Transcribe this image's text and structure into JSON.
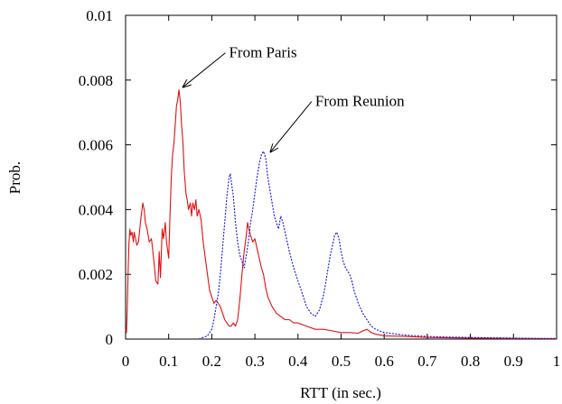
{
  "chart_data": {
    "type": "line",
    "title": "",
    "xlabel": "RTT (in sec.)",
    "ylabel": "Prob.",
    "xlim": [
      0,
      1
    ],
    "ylim": [
      0,
      0.01
    ],
    "x_ticks": [
      "0",
      "0.1",
      "0.2",
      "0.3",
      "0.4",
      "0.5",
      "0.6",
      "0.7",
      "0.8",
      "0.9",
      "1"
    ],
    "y_ticks": [
      "0",
      "0.002",
      "0.004",
      "0.006",
      "0.008",
      "0.01"
    ],
    "grid": false,
    "legend": "none",
    "series": [
      {
        "color": "#e01010",
        "style": "solid",
        "points": [
          [
            0.0,
            0.0003
          ],
          [
            0.002,
            0.0002
          ],
          [
            0.004,
            0.001
          ],
          [
            0.006,
            0.0022
          ],
          [
            0.008,
            0.003
          ],
          [
            0.01,
            0.0034
          ],
          [
            0.012,
            0.0032
          ],
          [
            0.015,
            0.0033
          ],
          [
            0.018,
            0.003
          ],
          [
            0.02,
            0.0033
          ],
          [
            0.023,
            0.0031
          ],
          [
            0.026,
            0.0029
          ],
          [
            0.03,
            0.003
          ],
          [
            0.033,
            0.0034
          ],
          [
            0.036,
            0.0038
          ],
          [
            0.04,
            0.0042
          ],
          [
            0.043,
            0.004
          ],
          [
            0.046,
            0.0036
          ],
          [
            0.05,
            0.0034
          ],
          [
            0.055,
            0.003
          ],
          [
            0.06,
            0.0031
          ],
          [
            0.065,
            0.0025
          ],
          [
            0.07,
            0.0018
          ],
          [
            0.075,
            0.0017
          ],
          [
            0.078,
            0.0027
          ],
          [
            0.081,
            0.0019
          ],
          [
            0.085,
            0.0034
          ],
          [
            0.088,
            0.0031
          ],
          [
            0.092,
            0.0036
          ],
          [
            0.095,
            0.003
          ],
          [
            0.1,
            0.0025
          ],
          [
            0.103,
            0.0038
          ],
          [
            0.106,
            0.005
          ],
          [
            0.109,
            0.0057
          ],
          [
            0.112,
            0.006
          ],
          [
            0.115,
            0.0066
          ],
          [
            0.118,
            0.0072
          ],
          [
            0.121,
            0.0074
          ],
          [
            0.124,
            0.0077
          ],
          [
            0.127,
            0.0073
          ],
          [
            0.13,
            0.0066
          ],
          [
            0.133,
            0.0061
          ],
          [
            0.136,
            0.0052
          ],
          [
            0.14,
            0.0045
          ],
          [
            0.143,
            0.0043
          ],
          [
            0.146,
            0.004
          ],
          [
            0.15,
            0.0042
          ],
          [
            0.153,
            0.0038
          ],
          [
            0.156,
            0.0042
          ],
          [
            0.16,
            0.004
          ],
          [
            0.163,
            0.0043
          ],
          [
            0.166,
            0.0038
          ],
          [
            0.17,
            0.004
          ],
          [
            0.175,
            0.0037
          ],
          [
            0.18,
            0.003
          ],
          [
            0.185,
            0.0025
          ],
          [
            0.19,
            0.002
          ],
          [
            0.195,
            0.0015
          ],
          [
            0.2,
            0.0013
          ],
          [
            0.205,
            0.0011
          ],
          [
            0.21,
            0.0012
          ],
          [
            0.215,
            0.0011
          ],
          [
            0.22,
            0.001
          ],
          [
            0.225,
            0.0008
          ],
          [
            0.23,
            0.0006
          ],
          [
            0.235,
            0.0005
          ],
          [
            0.24,
            0.0004
          ],
          [
            0.245,
            0.0004
          ],
          [
            0.25,
            0.0005
          ],
          [
            0.255,
            0.0004
          ],
          [
            0.26,
            0.0006
          ],
          [
            0.265,
            0.0012
          ],
          [
            0.27,
            0.002
          ],
          [
            0.275,
            0.0027
          ],
          [
            0.28,
            0.0032
          ],
          [
            0.283,
            0.0036
          ],
          [
            0.286,
            0.0034
          ],
          [
            0.29,
            0.0032
          ],
          [
            0.295,
            0.003
          ],
          [
            0.3,
            0.0031
          ],
          [
            0.305,
            0.0028
          ],
          [
            0.31,
            0.0025
          ],
          [
            0.315,
            0.0022
          ],
          [
            0.32,
            0.002
          ],
          [
            0.325,
            0.0016
          ],
          [
            0.33,
            0.0013
          ],
          [
            0.34,
            0.001
          ],
          [
            0.35,
            0.0008
          ],
          [
            0.36,
            0.0007
          ],
          [
            0.37,
            0.0006
          ],
          [
            0.38,
            0.0006
          ],
          [
            0.39,
            0.0005
          ],
          [
            0.4,
            0.0005
          ],
          [
            0.42,
            0.0004
          ],
          [
            0.44,
            0.0003
          ],
          [
            0.46,
            0.0003
          ],
          [
            0.48,
            0.00025
          ],
          [
            0.5,
            0.0002
          ],
          [
            0.52,
            0.0002
          ],
          [
            0.54,
            0.00018
          ],
          [
            0.55,
            0.00025
          ],
          [
            0.56,
            0.0003
          ],
          [
            0.57,
            0.0002
          ],
          [
            0.58,
            0.00015
          ],
          [
            0.6,
            0.0001
          ],
          [
            0.65,
            8e-05
          ],
          [
            0.7,
            5e-05
          ],
          [
            0.8,
            3e-05
          ],
          [
            0.9,
            2e-05
          ],
          [
            1.0,
            1e-05
          ]
        ]
      },
      {
        "color": "#1010e0",
        "style": "dotted",
        "points": [
          [
            0.17,
            0.0
          ],
          [
            0.18,
            5e-05
          ],
          [
            0.19,
            0.0001
          ],
          [
            0.2,
            0.0003
          ],
          [
            0.205,
            0.0006
          ],
          [
            0.21,
            0.001
          ],
          [
            0.215,
            0.0014
          ],
          [
            0.22,
            0.002
          ],
          [
            0.225,
            0.0028
          ],
          [
            0.23,
            0.0036
          ],
          [
            0.235,
            0.0044
          ],
          [
            0.24,
            0.005
          ],
          [
            0.243,
            0.0051
          ],
          [
            0.246,
            0.0048
          ],
          [
            0.25,
            0.0044
          ],
          [
            0.255,
            0.0036
          ],
          [
            0.26,
            0.003
          ],
          [
            0.265,
            0.0026
          ],
          [
            0.27,
            0.0024
          ],
          [
            0.275,
            0.0022
          ],
          [
            0.28,
            0.0026
          ],
          [
            0.285,
            0.003
          ],
          [
            0.29,
            0.0036
          ],
          [
            0.295,
            0.004
          ],
          [
            0.3,
            0.0045
          ],
          [
            0.305,
            0.005
          ],
          [
            0.31,
            0.0054
          ],
          [
            0.315,
            0.0057
          ],
          [
            0.32,
            0.0058
          ],
          [
            0.325,
            0.0056
          ],
          [
            0.33,
            0.005
          ],
          [
            0.335,
            0.0046
          ],
          [
            0.34,
            0.0042
          ],
          [
            0.345,
            0.0038
          ],
          [
            0.35,
            0.0036
          ],
          [
            0.355,
            0.0034
          ],
          [
            0.36,
            0.0038
          ],
          [
            0.365,
            0.0036
          ],
          [
            0.37,
            0.0033
          ],
          [
            0.375,
            0.003
          ],
          [
            0.38,
            0.0027
          ],
          [
            0.39,
            0.0022
          ],
          [
            0.4,
            0.0018
          ],
          [
            0.41,
            0.0014
          ],
          [
            0.42,
            0.001
          ],
          [
            0.43,
            0.0008
          ],
          [
            0.44,
            0.0007
          ],
          [
            0.45,
            0.0009
          ],
          [
            0.46,
            0.0014
          ],
          [
            0.465,
            0.0018
          ],
          [
            0.47,
            0.0022
          ],
          [
            0.475,
            0.0026
          ],
          [
            0.48,
            0.0029
          ],
          [
            0.485,
            0.0032
          ],
          [
            0.49,
            0.0033
          ],
          [
            0.495,
            0.0031
          ],
          [
            0.5,
            0.0027
          ],
          [
            0.505,
            0.0024
          ],
          [
            0.51,
            0.0022
          ],
          [
            0.515,
            0.0021
          ],
          [
            0.52,
            0.002
          ],
          [
            0.525,
            0.0018
          ],
          [
            0.53,
            0.0015
          ],
          [
            0.54,
            0.0011
          ],
          [
            0.55,
            0.0008
          ],
          [
            0.56,
            0.0006
          ],
          [
            0.57,
            0.0004
          ],
          [
            0.58,
            0.0003
          ],
          [
            0.6,
            0.0002
          ],
          [
            0.65,
            0.00012
          ],
          [
            0.7,
            8e-05
          ],
          [
            0.75,
            6e-05
          ],
          [
            0.8,
            5e-05
          ],
          [
            0.85,
            4e-05
          ],
          [
            0.9,
            3e-05
          ],
          [
            0.95,
            2e-05
          ],
          [
            1.0,
            2e-05
          ]
        ]
      }
    ],
    "annotations": [
      {
        "text": "From Paris",
        "arrow_to": [
          0.127,
          0.0077
        ],
        "text_at": [
          0.24,
          0.0087
        ]
      },
      {
        "text": "From Reunion",
        "arrow_to": [
          0.33,
          0.0057
        ],
        "text_at": [
          0.44,
          0.0072
        ]
      }
    ]
  }
}
